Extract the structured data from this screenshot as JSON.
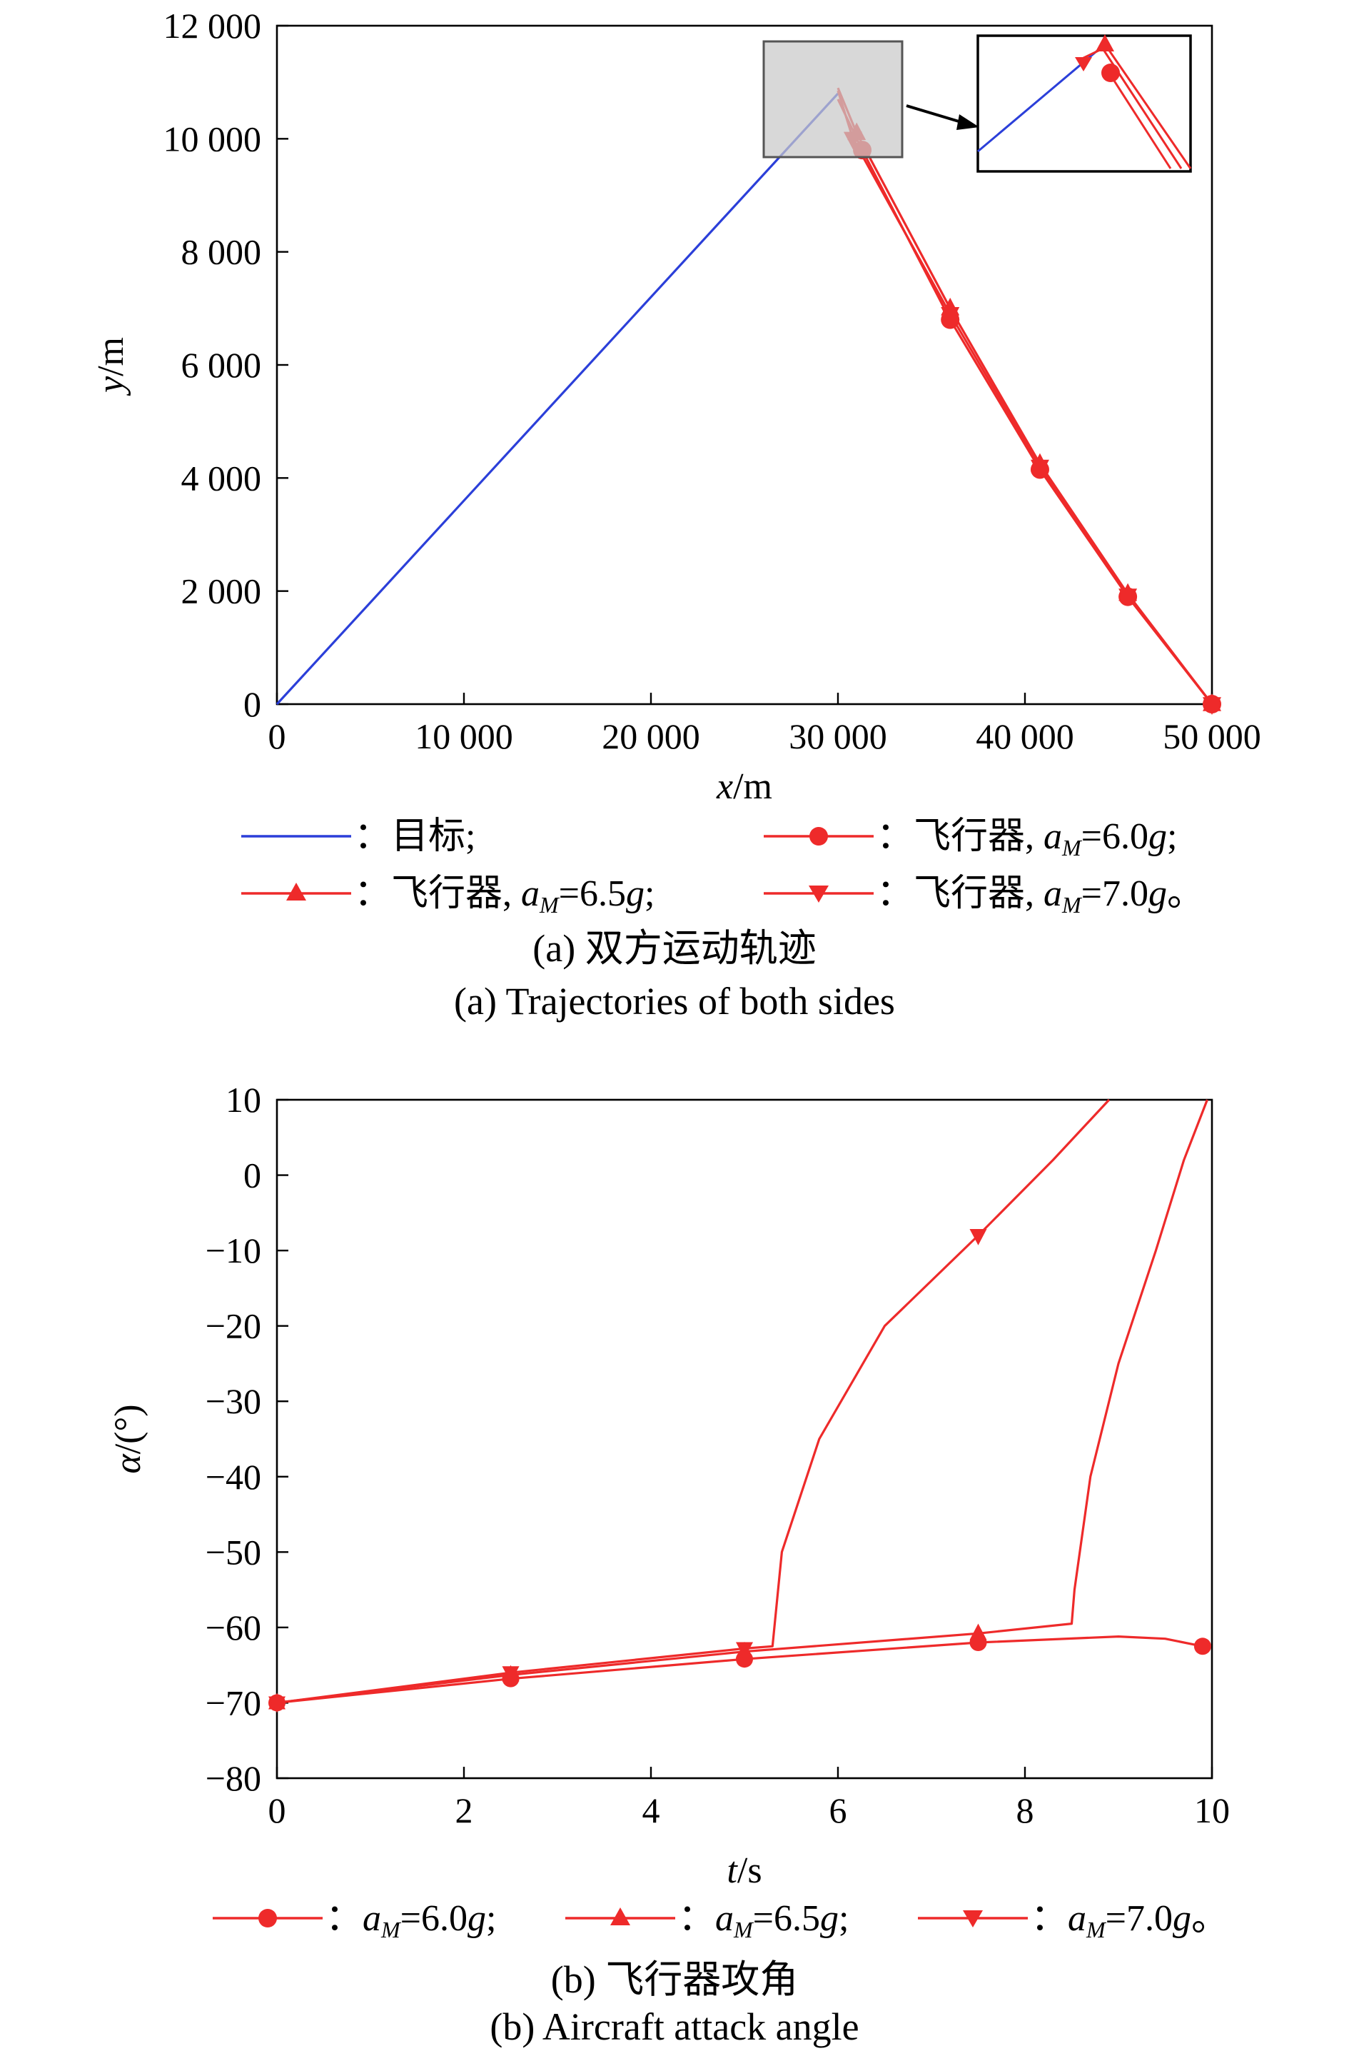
{
  "chart_data": [
    {
      "type": "line",
      "title": "",
      "xlabel": "x/m",
      "xlabel_var": "x",
      "xlabel_unit": "/m",
      "ylabel": "y/m",
      "ylabel_var": "y",
      "ylabel_unit": "/m",
      "xlim": [
        0,
        50000
      ],
      "ylim": [
        0,
        12000
      ],
      "xticks": [
        0,
        10000,
        20000,
        30000,
        40000,
        50000
      ],
      "xtick_labels": [
        "0",
        "10 000",
        "20 000",
        "30 000",
        "40 000",
        "50 000"
      ],
      "yticks": [
        0,
        2000,
        4000,
        6000,
        8000,
        10000,
        12000
      ],
      "ytick_labels": [
        "0",
        "2 000",
        "4 000",
        "6 000",
        "8 000",
        "10 000",
        "12 000"
      ],
      "grid": false,
      "series": [
        {
          "name": "目标",
          "color": "#2b3fd9",
          "marker": "none",
          "x": [
            0,
            30000
          ],
          "y": [
            0,
            10800
          ]
        },
        {
          "name": "飞行器, aM=6.0g",
          "color": "#ee2a2a",
          "marker": "circle",
          "x": [
            50000,
            45500,
            40800,
            36000,
            31300,
            30000
          ],
          "y": [
            0,
            1900,
            4150,
            6800,
            9800,
            10700
          ]
        },
        {
          "name": "飞行器, aM=6.5g",
          "color": "#ee2a2a",
          "marker": "triangle-up",
          "x": [
            50000,
            45500,
            40800,
            36000,
            31000,
            30000
          ],
          "y": [
            0,
            1950,
            4250,
            7000,
            10100,
            10900
          ]
        },
        {
          "name": "飞行器, aM=7.0g",
          "color": "#ee2a2a",
          "marker": "triangle-down",
          "x": [
            50000,
            45500,
            40800,
            36000,
            30800,
            30000
          ],
          "y": [
            0,
            1920,
            4200,
            6900,
            10000,
            10850
          ]
        }
      ],
      "inset": {
        "description_hidden": true,
        "highlight_xlim": [
          26500,
          33500
        ],
        "highlight_ylim": [
          9700,
          11800
        ]
      },
      "legend": [
        {
          "label": "：目标;",
          "var": "",
          "tail": ""
        },
        {
          "label": "：飞行器, ",
          "var": "a",
          "sub": "M",
          "val": "=6.0",
          "g": "g",
          "tail": ";"
        },
        {
          "label": "：飞行器, ",
          "var": "a",
          "sub": "M",
          "val": "=6.5",
          "g": "g",
          "tail": ";"
        },
        {
          "label": "：飞行器, ",
          "var": "a",
          "sub": "M",
          "val": "=7.0",
          "g": "g",
          "tail": "。"
        }
      ],
      "caption_cn": "(a) 双方运动轨迹",
      "caption_en": "(a) Trajectories of both sides"
    },
    {
      "type": "line",
      "title": "",
      "xlabel": "t/s",
      "xlabel_var": "t",
      "xlabel_unit": "/s",
      "ylabel": "α/(°)",
      "ylabel_var": "α",
      "ylabel_unit": "/(°)",
      "xlim": [
        0,
        10
      ],
      "ylim": [
        -80,
        10
      ],
      "xticks": [
        0,
        2,
        4,
        6,
        8,
        10
      ],
      "xtick_labels": [
        "0",
        "2",
        "4",
        "6",
        "8",
        "10"
      ],
      "yticks": [
        10,
        0,
        -10,
        -20,
        -30,
        -40,
        -50,
        -60,
        -70,
        -80
      ],
      "ytick_labels": [
        "10",
        "0",
        "−10",
        "−20",
        "−30",
        "−40",
        "−50",
        "−60",
        "−70",
        "−80"
      ],
      "grid": false,
      "series": [
        {
          "name": "aM=6.0g",
          "color": "#ee2a2a",
          "marker": "circle",
          "x": [
            0,
            2.5,
            5,
            7.5,
            9,
            9.5,
            9.9
          ],
          "y": [
            -70,
            -66.8,
            -64.2,
            -62,
            -61.2,
            -61.5,
            -62.5
          ]
        },
        {
          "name": "aM=6.5g",
          "color": "#ee2a2a",
          "marker": "triangle-up",
          "x": [
            0,
            2.5,
            5,
            7.5,
            8.5,
            8.53,
            8.7,
            9.0,
            9.4,
            9.7,
            9.95
          ],
          "y": [
            -70,
            -66.3,
            -63.2,
            -60.8,
            -59.5,
            -55,
            -40,
            -25,
            -10,
            2,
            10
          ]
        },
        {
          "name": "aM=7.0g",
          "color": "#ee2a2a",
          "marker": "triangle-down",
          "x": [
            0,
            2.5,
            5,
            5.3,
            5.4,
            5.8,
            6.5,
            7.5,
            8.3,
            8.9
          ],
          "y": [
            -70,
            -66.0,
            -62.8,
            -62.5,
            -50,
            -35,
            -20,
            -8,
            2,
            10
          ]
        }
      ],
      "legend": [
        {
          "label": "：",
          "var": "a",
          "sub": "M",
          "val": "=6.0",
          "g": "g",
          "tail": ";"
        },
        {
          "label": "：",
          "var": "a",
          "sub": "M",
          "val": "=6.5",
          "g": "g",
          "tail": ";"
        },
        {
          "label": "：",
          "var": "a",
          "sub": "M",
          "val": "=7.0",
          "g": "g",
          "tail": "。"
        }
      ],
      "caption_cn": "(b) 飞行器攻角",
      "caption_en": "(b) Aircraft attack angle"
    }
  ]
}
